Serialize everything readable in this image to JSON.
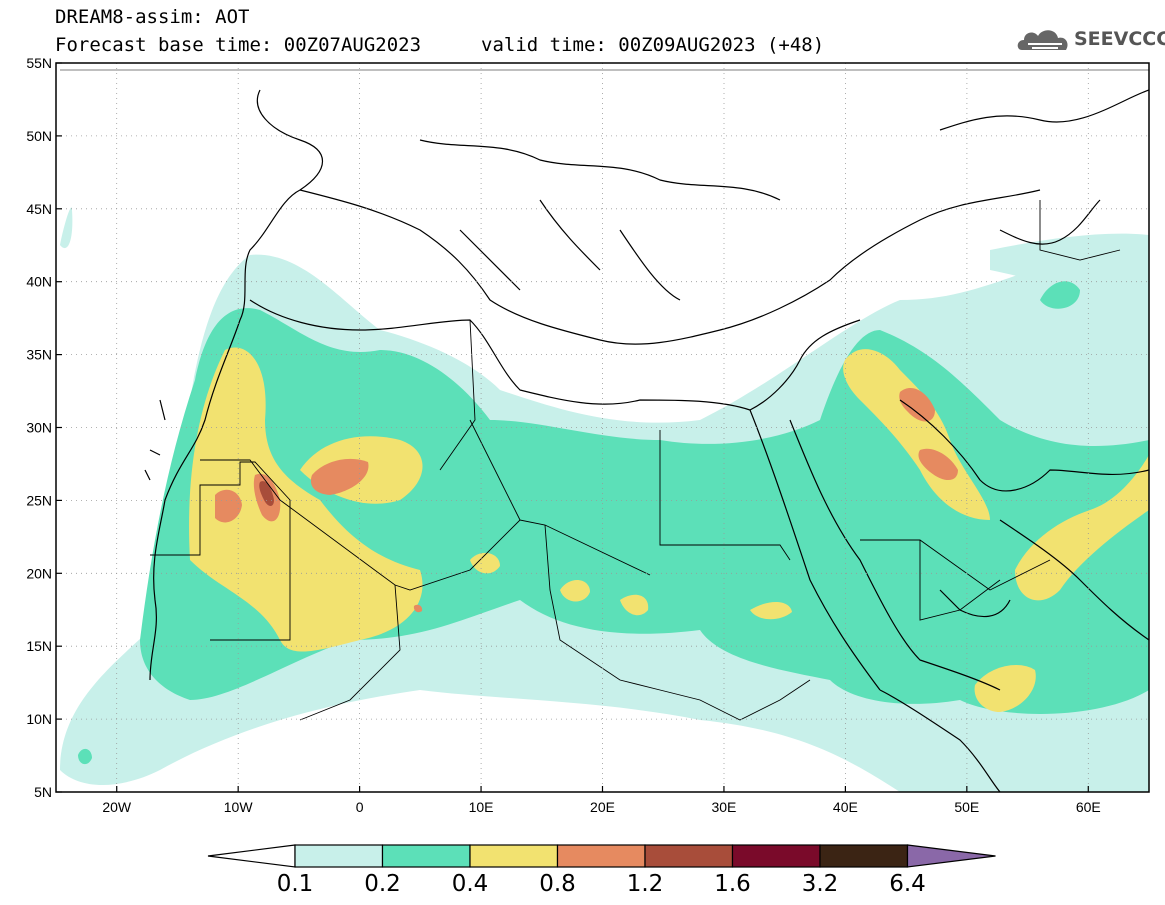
{
  "header": {
    "title": "DREAM8-assim: AOT",
    "base_time": "Forecast base time: 00Z07AUG2023",
    "valid_time": "valid time: 00Z09AUG2023 (+48)",
    "logo_text": "SEEVCCC"
  },
  "axes": {
    "lat_labels": [
      "55N",
      "50N",
      "45N",
      "40N",
      "35N",
      "30N",
      "25N",
      "20N",
      "15N",
      "10N",
      "5N"
    ],
    "lon_labels": [
      "20W",
      "10W",
      "0",
      "10E",
      "20E",
      "30E",
      "40E",
      "50E",
      "60E"
    ],
    "lat_range": [
      5,
      55
    ],
    "lon_range": [
      -25,
      65
    ]
  },
  "colorbar": {
    "labels": [
      "0.1",
      "0.2",
      "0.4",
      "0.8",
      "1.2",
      "1.6",
      "3.2",
      "6.4"
    ],
    "colors": [
      "#c8f0ea",
      "#5ce0b8",
      "#f2e270",
      "#e68a60",
      "#a84d3a",
      "#7a0a2a",
      "#3b2414",
      "#8a68a8"
    ]
  },
  "colors": {
    "c1": "#c8f0ea",
    "c2": "#5ce0b8",
    "c3": "#f2e270",
    "c4": "#e68a60",
    "c5": "#a84d3a",
    "c6": "#7a0a2a"
  }
}
